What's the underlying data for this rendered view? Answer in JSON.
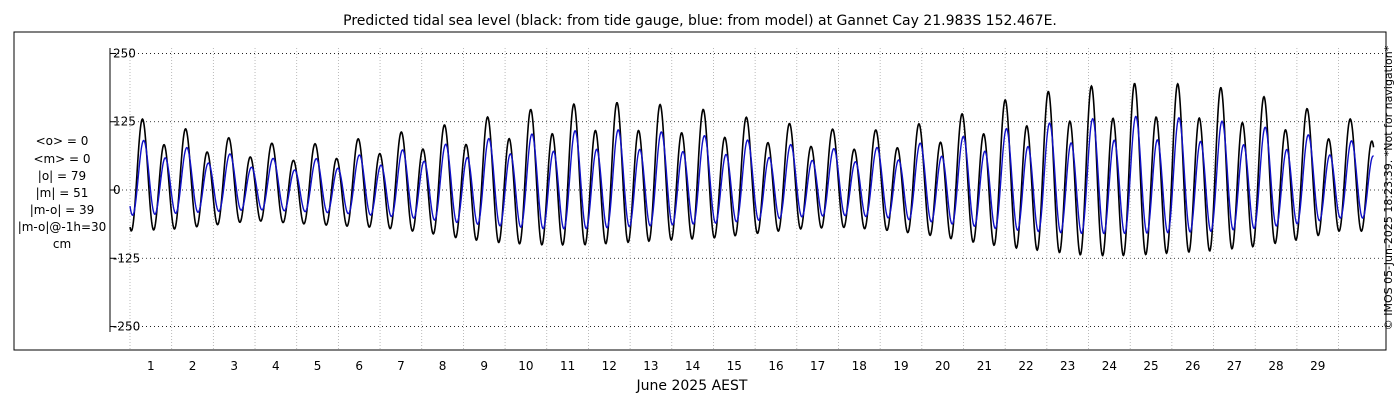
{
  "chart_data": {
    "type": "line",
    "title": "Predicted tidal sea level (black: from tide gauge, blue: from model) at Gannet Cay 21.983S 152.467E.",
    "xlabel": "June 2025 AEST",
    "ylabel": "",
    "side_stats": [
      "<o> = 0",
      "<m> = 0",
      "|o| = 79",
      "|m| = 51",
      "|m-o| = 39",
      "|m-o|@-1h=30",
      "cm"
    ],
    "copyright": "© IMOS 05-Jun-2025 18:23:39. *Not for navigation*",
    "x_range_days": [
      0.0,
      29.85
    ],
    "ylim": [
      -260,
      260
    ],
    "y_ticks": [
      250,
      125,
      0,
      -125,
      -250
    ],
    "y_tick_labels": [
      "250",
      "125",
      "0",
      "-125",
      "-250"
    ],
    "x_ticks": [
      1,
      2,
      3,
      4,
      5,
      6,
      7,
      8,
      9,
      10,
      11,
      12,
      13,
      14,
      15,
      16,
      17,
      18,
      19,
      20,
      21,
      22,
      23,
      24,
      25,
      26,
      27,
      28,
      29
    ],
    "x_tick_labels": [
      "1",
      "2",
      "3",
      "4",
      "5",
      "6",
      "7",
      "8",
      "9",
      "10",
      "11",
      "12",
      "13",
      "14",
      "15",
      "16",
      "17",
      "18",
      "19",
      "20",
      "21",
      "22",
      "23",
      "24",
      "25",
      "26",
      "27",
      "28",
      "29"
    ],
    "grid": true,
    "colors": {
      "observed": "#000000",
      "model": "#1010c8",
      "grid": "#999999"
    },
    "series": [
      {
        "name": "black: from tide gauge",
        "color": "#000000",
        "day": [
          0,
          1,
          2,
          3,
          4,
          5,
          6,
          7,
          8,
          9,
          10,
          11,
          12,
          13,
          14,
          15,
          16,
          17,
          18,
          19,
          20,
          21,
          22,
          23,
          24,
          25,
          26,
          27,
          28,
          29
        ],
        "high_water": [
          135,
          118,
          100,
          88,
          82,
          88,
          100,
          112,
          125,
          140,
          152,
          160,
          160,
          155,
          145,
          130,
          120,
          110,
          110,
          122,
          140,
          165,
          180,
          190,
          195,
          195,
          190,
          175,
          155,
          130
        ],
        "low_water": [
          -95,
          -90,
          -80,
          -70,
          -75,
          -80,
          -85,
          -95,
          -110,
          -120,
          -125,
          -125,
          -120,
          -115,
          -110,
          -100,
          -90,
          -85,
          -90,
          -100,
          -115,
          -130,
          -140,
          -150,
          -150,
          -145,
          -140,
          -130,
          -115,
          -95
        ]
      },
      {
        "name": "blue: from model",
        "color": "#1010c8",
        "day": [
          0,
          1,
          2,
          3,
          4,
          5,
          6,
          7,
          8,
          9,
          10,
          11,
          12,
          13,
          14,
          15,
          16,
          17,
          18,
          19,
          20,
          21,
          22,
          23,
          24,
          25,
          26,
          27,
          28,
          29
        ],
        "high_water": [
          95,
          82,
          70,
          60,
          55,
          60,
          68,
          78,
          88,
          98,
          105,
          110,
          110,
          105,
          98,
          90,
          82,
          75,
          78,
          86,
          98,
          112,
          122,
          130,
          135,
          133,
          128,
          118,
          105,
          90
        ],
        "low_water": [
          -60,
          -55,
          -50,
          -45,
          -48,
          -52,
          -58,
          -65,
          -75,
          -82,
          -88,
          -88,
          -84,
          -80,
          -76,
          -70,
          -62,
          -58,
          -62,
          -70,
          -80,
          -90,
          -96,
          -100,
          -100,
          -98,
          -95,
          -88,
          -78,
          -65
        ]
      }
    ]
  }
}
